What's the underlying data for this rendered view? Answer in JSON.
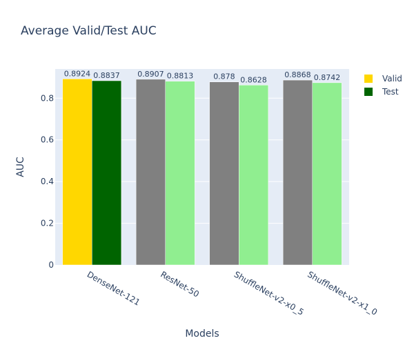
{
  "chart_data": {
    "type": "bar",
    "title": "Average Valid/Test AUC",
    "xlabel": "Models",
    "ylabel": "AUC",
    "categories": [
      "DenseNet-121",
      "ResNet-50",
      "ShuffleNet-v2-x0_5",
      "ShuffleNet-v2-x1_0"
    ],
    "series": [
      {
        "name": "Valid",
        "values": [
          0.8924,
          0.8907,
          0.878,
          0.8868
        ],
        "labels": [
          "0.8924",
          "0.8907",
          "0.878",
          "0.8868"
        ],
        "colors": [
          "#FFD700",
          "#808080",
          "#808080",
          "#808080"
        ]
      },
      {
        "name": "Test",
        "values": [
          0.8837,
          0.8813,
          0.8628,
          0.8742
        ],
        "labels": [
          "0.8837",
          "0.8813",
          "0.8628",
          "0.8742"
        ],
        "colors": [
          "#006400",
          "#90EE90",
          "#90EE90",
          "#90EE90"
        ]
      }
    ],
    "legend": [
      {
        "name": "Valid",
        "color": "#FFD700"
      },
      {
        "name": "Test",
        "color": "#006400"
      }
    ],
    "yticks": [
      "0",
      "0.2",
      "0.4",
      "0.6",
      "0.8"
    ],
    "ylim": [
      0,
      0.94
    ],
    "grid": true,
    "legend_position": "top-right",
    "plot_background": "#E5ECF6"
  }
}
